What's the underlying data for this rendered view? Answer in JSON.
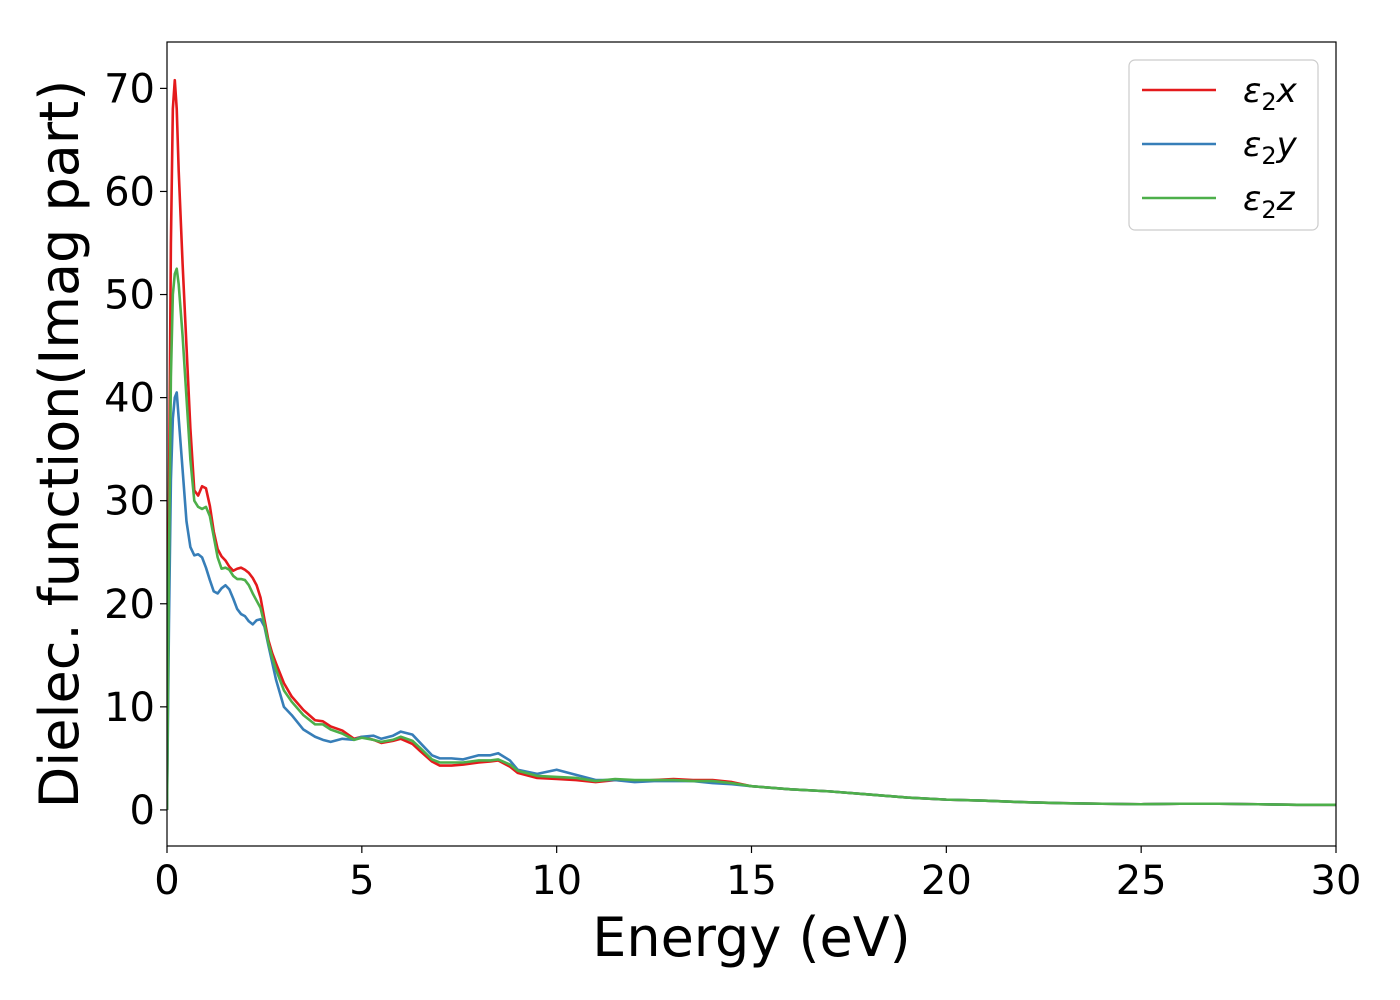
{
  "chart_data": {
    "type": "line",
    "title": "",
    "xlabel": "Energy (eV)",
    "ylabel": "Dielec. function(Imag part)",
    "xlim": [
      0,
      30
    ],
    "ylim": [
      -3.5,
      74.5
    ],
    "xticks": [
      0,
      5,
      10,
      15,
      20,
      25,
      30
    ],
    "yticks": [
      0,
      10,
      20,
      30,
      40,
      50,
      60,
      70
    ],
    "grid": false,
    "legend_position": "top-right",
    "series": [
      {
        "name": "ε₂x",
        "legend_base": "ε",
        "legend_sub": "2",
        "legend_var": "x",
        "color": "#e41a1c",
        "x": [
          0,
          0.05,
          0.1,
          0.15,
          0.2,
          0.25,
          0.3,
          0.4,
          0.5,
          0.6,
          0.7,
          0.8,
          0.9,
          1.0,
          1.1,
          1.2,
          1.3,
          1.4,
          1.5,
          1.6,
          1.7,
          1.8,
          1.9,
          2.0,
          2.1,
          2.2,
          2.3,
          2.4,
          2.5,
          2.6,
          2.7,
          2.8,
          3.0,
          3.2,
          3.5,
          3.8,
          4.0,
          4.2,
          4.5,
          4.8,
          5.0,
          5.3,
          5.5,
          5.8,
          6.0,
          6.3,
          6.5,
          6.8,
          7.0,
          7.3,
          7.6,
          8.0,
          8.3,
          8.5,
          8.8,
          9.0,
          9.5,
          10.0,
          10.5,
          11.0,
          11.5,
          12.0,
          12.5,
          13.0,
          13.5,
          14.0,
          14.5,
          15.0,
          16.0,
          17.0,
          18.0,
          19.0,
          20.0,
          21.0,
          22.0,
          23.0,
          24.0,
          25.0,
          26.0,
          27.0,
          28.0,
          29.0,
          30.0
        ],
        "values": [
          0,
          30,
          55,
          68,
          70.8,
          68,
          62,
          53,
          45,
          37,
          31,
          30.5,
          31.4,
          31.2,
          29.5,
          27,
          25.3,
          24.6,
          24.2,
          23.6,
          23.2,
          23.4,
          23.5,
          23.3,
          23.0,
          22.5,
          21.8,
          20.6,
          18.5,
          16.5,
          15.2,
          14.2,
          12.3,
          11.0,
          9.7,
          8.7,
          8.6,
          8.1,
          7.7,
          6.9,
          7.1,
          6.8,
          6.5,
          6.7,
          6.9,
          6.4,
          5.7,
          4.7,
          4.3,
          4.3,
          4.4,
          4.6,
          4.7,
          4.8,
          4.2,
          3.6,
          3.1,
          3.0,
          2.9,
          2.7,
          2.9,
          2.8,
          2.9,
          3.0,
          2.9,
          2.9,
          2.7,
          2.3,
          2.0,
          1.8,
          1.5,
          1.2,
          1.0,
          0.9,
          0.75,
          0.65,
          0.6,
          0.55,
          0.6,
          0.6,
          0.55,
          0.5,
          0.5
        ]
      },
      {
        "name": "ε₂y",
        "legend_base": "ε",
        "legend_sub": "2",
        "legend_var": "y",
        "color": "#377eb8",
        "x": [
          0,
          0.05,
          0.1,
          0.15,
          0.2,
          0.25,
          0.3,
          0.4,
          0.5,
          0.6,
          0.7,
          0.8,
          0.9,
          1.0,
          1.1,
          1.2,
          1.3,
          1.4,
          1.5,
          1.6,
          1.7,
          1.8,
          1.9,
          2.0,
          2.1,
          2.2,
          2.3,
          2.4,
          2.5,
          2.6,
          2.7,
          2.8,
          3.0,
          3.2,
          3.5,
          3.8,
          4.0,
          4.2,
          4.5,
          4.8,
          5.0,
          5.3,
          5.5,
          5.8,
          6.0,
          6.3,
          6.5,
          6.8,
          7.0,
          7.3,
          7.6,
          8.0,
          8.3,
          8.5,
          8.8,
          9.0,
          9.5,
          10.0,
          10.5,
          11.0,
          11.5,
          12.0,
          12.5,
          13.0,
          13.5,
          14.0,
          14.5,
          15.0,
          16.0,
          17.0,
          18.0,
          19.0,
          20.0,
          21.0,
          22.0,
          23.0,
          24.0,
          25.0,
          26.0,
          27.0,
          28.0,
          29.0,
          30.0
        ],
        "values": [
          0,
          18,
          32,
          38,
          40.0,
          40.5,
          38,
          33,
          28,
          25.5,
          24.7,
          24.8,
          24.5,
          23.5,
          22.3,
          21.2,
          21.0,
          21.5,
          21.8,
          21.4,
          20.5,
          19.5,
          19.0,
          18.8,
          18.3,
          18.0,
          18.4,
          18.5,
          17.8,
          16.0,
          14.3,
          12.6,
          10.0,
          9.2,
          7.8,
          7.1,
          6.8,
          6.6,
          6.9,
          6.8,
          7.1,
          7.2,
          6.9,
          7.2,
          7.6,
          7.3,
          6.5,
          5.3,
          5.0,
          5.0,
          4.9,
          5.3,
          5.3,
          5.5,
          4.8,
          3.9,
          3.5,
          3.9,
          3.4,
          2.9,
          2.9,
          2.7,
          2.8,
          2.8,
          2.8,
          2.6,
          2.5,
          2.3,
          2.0,
          1.8,
          1.5,
          1.2,
          1.0,
          0.9,
          0.75,
          0.65,
          0.6,
          0.55,
          0.6,
          0.6,
          0.55,
          0.5,
          0.5
        ]
      },
      {
        "name": "ε₂z",
        "legend_base": "ε",
        "legend_sub": "2",
        "legend_var": "z",
        "color": "#4daf4a",
        "x": [
          0,
          0.05,
          0.1,
          0.15,
          0.2,
          0.25,
          0.3,
          0.4,
          0.5,
          0.6,
          0.7,
          0.8,
          0.9,
          1.0,
          1.1,
          1.2,
          1.3,
          1.4,
          1.5,
          1.6,
          1.7,
          1.8,
          1.9,
          2.0,
          2.1,
          2.2,
          2.3,
          2.4,
          2.5,
          2.6,
          2.7,
          2.8,
          3.0,
          3.2,
          3.5,
          3.8,
          4.0,
          4.2,
          4.5,
          4.8,
          5.0,
          5.3,
          5.5,
          5.8,
          6.0,
          6.3,
          6.5,
          6.8,
          7.0,
          7.3,
          7.6,
          8.0,
          8.3,
          8.5,
          8.8,
          9.0,
          9.5,
          10.0,
          10.5,
          11.0,
          11.5,
          12.0,
          12.5,
          13.0,
          13.5,
          14.0,
          14.5,
          15.0,
          16.0,
          17.0,
          18.0,
          19.0,
          20.0,
          21.0,
          22.0,
          23.0,
          24.0,
          25.0,
          26.0,
          27.0,
          28.0,
          29.0,
          30.0
        ],
        "values": [
          0,
          24,
          42,
          50,
          52.0,
          52.5,
          51,
          46,
          40,
          34,
          30,
          29.4,
          29.2,
          29.4,
          28.5,
          26.5,
          24.5,
          23.4,
          23.5,
          23.3,
          22.7,
          22.4,
          22.4,
          22.3,
          21.8,
          21.0,
          20.3,
          19.6,
          18.0,
          16.2,
          14.8,
          13.6,
          11.6,
          10.5,
          9.2,
          8.3,
          8.3,
          7.8,
          7.4,
          6.8,
          7.0,
          6.8,
          6.6,
          6.8,
          7.1,
          6.7,
          6.0,
          4.9,
          4.6,
          4.6,
          4.6,
          4.8,
          4.8,
          4.9,
          4.4,
          3.8,
          3.3,
          3.2,
          3.1,
          2.8,
          3.0,
          2.9,
          2.9,
          2.9,
          2.8,
          2.8,
          2.6,
          2.3,
          2.0,
          1.8,
          1.5,
          1.2,
          1.0,
          0.9,
          0.75,
          0.65,
          0.6,
          0.55,
          0.6,
          0.6,
          0.55,
          0.5,
          0.5
        ]
      }
    ]
  }
}
